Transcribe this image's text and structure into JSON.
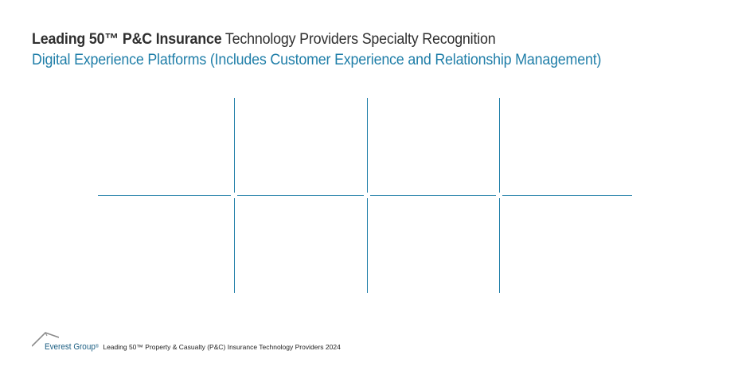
{
  "header": {
    "title_bold": "Leading 50™ P&C Insurance",
    "title_rest": "Technology Providers Specialty Recognition",
    "subtitle": "Digital Experience Platforms (Includes Customer Experience and Relationship Management)"
  },
  "grid": {
    "columns": 4,
    "rows": 2,
    "line_color": "#1f7ea8"
  },
  "footer": {
    "logo_text": "Everest Group",
    "logo_reg": "®",
    "report_title": "Leading 50™ Property & Casualty (P&C) Insurance Technology Providers 2024"
  },
  "colors": {
    "title": "#2f2f2f",
    "accent": "#1f7ea8",
    "logo": "#1b5e82"
  },
  "icons": {
    "logo": "everest-peak-icon"
  }
}
